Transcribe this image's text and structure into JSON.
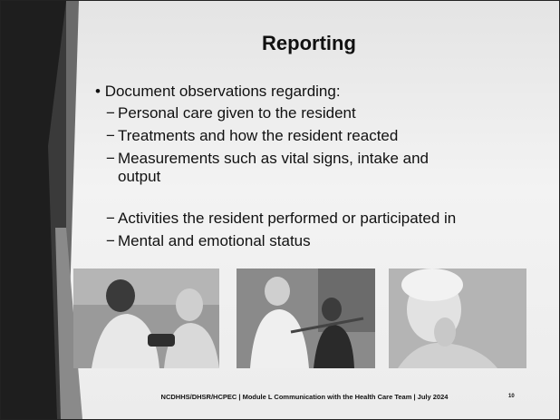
{
  "slide": {
    "title": "Reporting",
    "bullet": "Document observations regarding:",
    "sub_bullets": [
      "Personal care given to the resident",
      "Treatments and how the resident reacted",
      "Measurements such as vital signs, intake and output",
      "Activities the resident performed or participated in",
      "Mental and emotional status"
    ],
    "footer": "NCDHHS/DHSR/HCPEC | Module L Communication with the Health Care Team | July 2024",
    "page_number": "10"
  }
}
